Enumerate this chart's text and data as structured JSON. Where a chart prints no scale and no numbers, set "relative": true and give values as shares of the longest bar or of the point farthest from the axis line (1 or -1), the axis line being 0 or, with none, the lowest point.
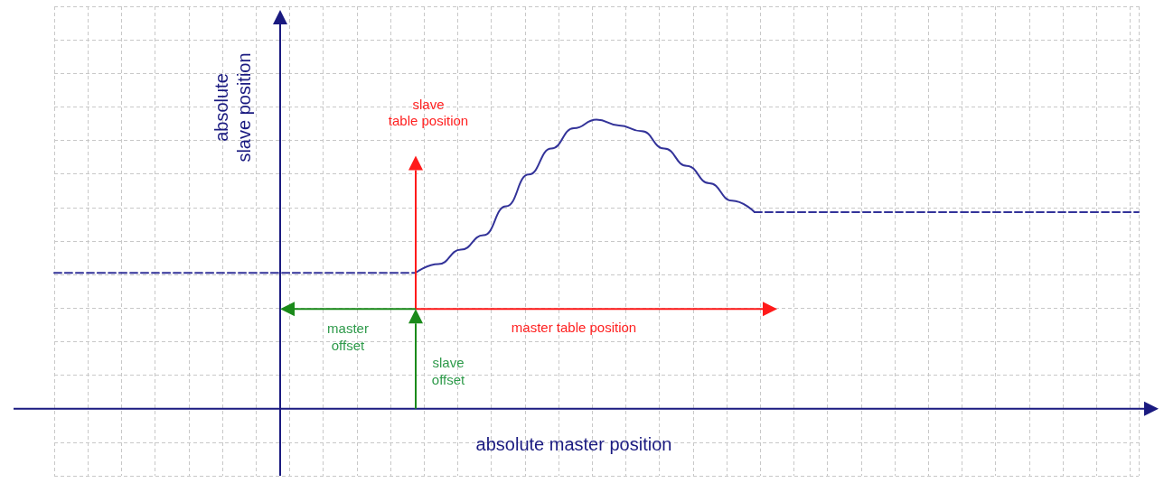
{
  "chart_data": {
    "type": "line",
    "relative": true,
    "grid": true,
    "marker": "none",
    "xlabel": "absolute master position",
    "ylabel": "absolute\nslave position",
    "annotations": [
      "slave\ntable position",
      "master table position",
      "master\noffset",
      "slave\noffset"
    ],
    "categories": [
      null,
      null,
      null,
      null,
      null,
      null,
      null,
      null,
      null,
      null,
      null,
      null,
      null,
      null,
      null,
      null,
      null,
      null,
      null,
      null,
      null,
      null,
      null,
      null,
      null,
      null,
      null,
      null,
      null,
      null,
      null,
      null,
      null,
      null,
      null,
      null,
      null,
      null,
      null,
      null,
      null,
      null,
      null,
      null,
      null,
      null,
      null,
      null,
      null
    ],
    "series": [
      {
        "color": "#333399",
        "line_style": "dashed",
        "values": [
          0.47,
          0.47,
          0.47,
          0.47,
          0.47,
          0.47,
          0.47,
          0.47,
          0.47,
          0.47,
          0.47,
          0.47,
          0.47,
          0.47,
          0.47,
          0.47,
          0.47,
          null,
          null,
          null,
          null,
          null,
          null,
          null,
          null,
          null,
          null,
          null,
          null,
          null,
          null,
          null,
          null,
          null,
          null,
          null,
          null,
          null,
          null,
          null,
          null,
          null,
          null,
          null,
          null,
          null,
          null,
          null,
          null
        ]
      },
      {
        "color": "#333399",
        "line_style": "solid",
        "values": [
          null,
          null,
          null,
          null,
          null,
          null,
          null,
          null,
          null,
          null,
          null,
          null,
          null,
          null,
          null,
          null,
          0.47,
          0.5,
          0.55,
          0.6,
          0.7,
          0.81,
          0.9,
          0.97,
          1,
          0.98,
          0.96,
          0.9,
          0.84,
          0.78,
          0.72,
          0.68,
          null,
          null,
          null,
          null,
          null,
          null,
          null,
          null,
          null,
          null,
          null,
          null,
          null,
          null,
          null,
          null,
          null
        ]
      },
      {
        "color": "#333399",
        "line_style": "dashed",
        "values": [
          null,
          null,
          null,
          null,
          null,
          null,
          null,
          null,
          null,
          null,
          null,
          null,
          null,
          null,
          null,
          null,
          null,
          null,
          null,
          null,
          null,
          null,
          null,
          null,
          null,
          null,
          null,
          null,
          null,
          null,
          null,
          0.68,
          0.68,
          0.68,
          0.68,
          0.68,
          0.68,
          0.68,
          0.68,
          0.68,
          0.68,
          0.68,
          0.68,
          0.68,
          0.68,
          0.68,
          0.68,
          0.68,
          0.68
        ]
      }
    ]
  }
}
